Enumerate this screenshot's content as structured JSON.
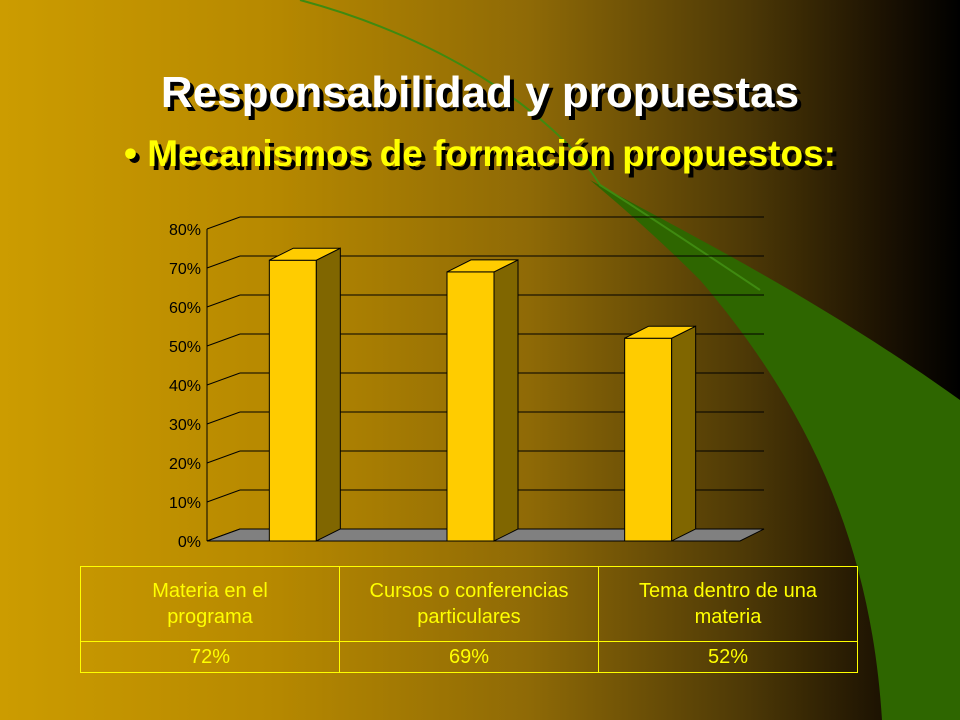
{
  "slide": {
    "title": "Responsabilidad y propuestas",
    "subtitle": "• Mecanismos de formación propuestos:"
  },
  "colors": {
    "bar_front": "#ffcc00",
    "bar_side": "#806600",
    "bar_top": "#ffcc00",
    "floor": "#808080",
    "table_text": "#ffff00",
    "title": "#ffffff",
    "subtitle": "#ffff00",
    "accent_green": "#2e6600"
  },
  "chart_data": {
    "type": "bar",
    "categories": [
      "Materia en el programa",
      "Cursos o conferencias particulares",
      "Tema dentro de una materia"
    ],
    "values": [
      0.72,
      0.69,
      0.52
    ],
    "value_labels": [
      "72%",
      "69%",
      "52%"
    ],
    "y_ticks": [
      "0%",
      "10%",
      "20%",
      "30%",
      "40%",
      "50%",
      "60%",
      "70%",
      "80%"
    ],
    "ylim": [
      0,
      0.8
    ],
    "grid": true,
    "three_d": true,
    "legend": "none"
  },
  "table": {
    "headers": [
      [
        "Materia en el",
        "programa"
      ],
      [
        "Cursos o conferencias",
        "particulares"
      ],
      [
        "Tema dentro de una",
        "materia"
      ]
    ],
    "values": [
      "72%",
      "69%",
      "52%"
    ]
  }
}
